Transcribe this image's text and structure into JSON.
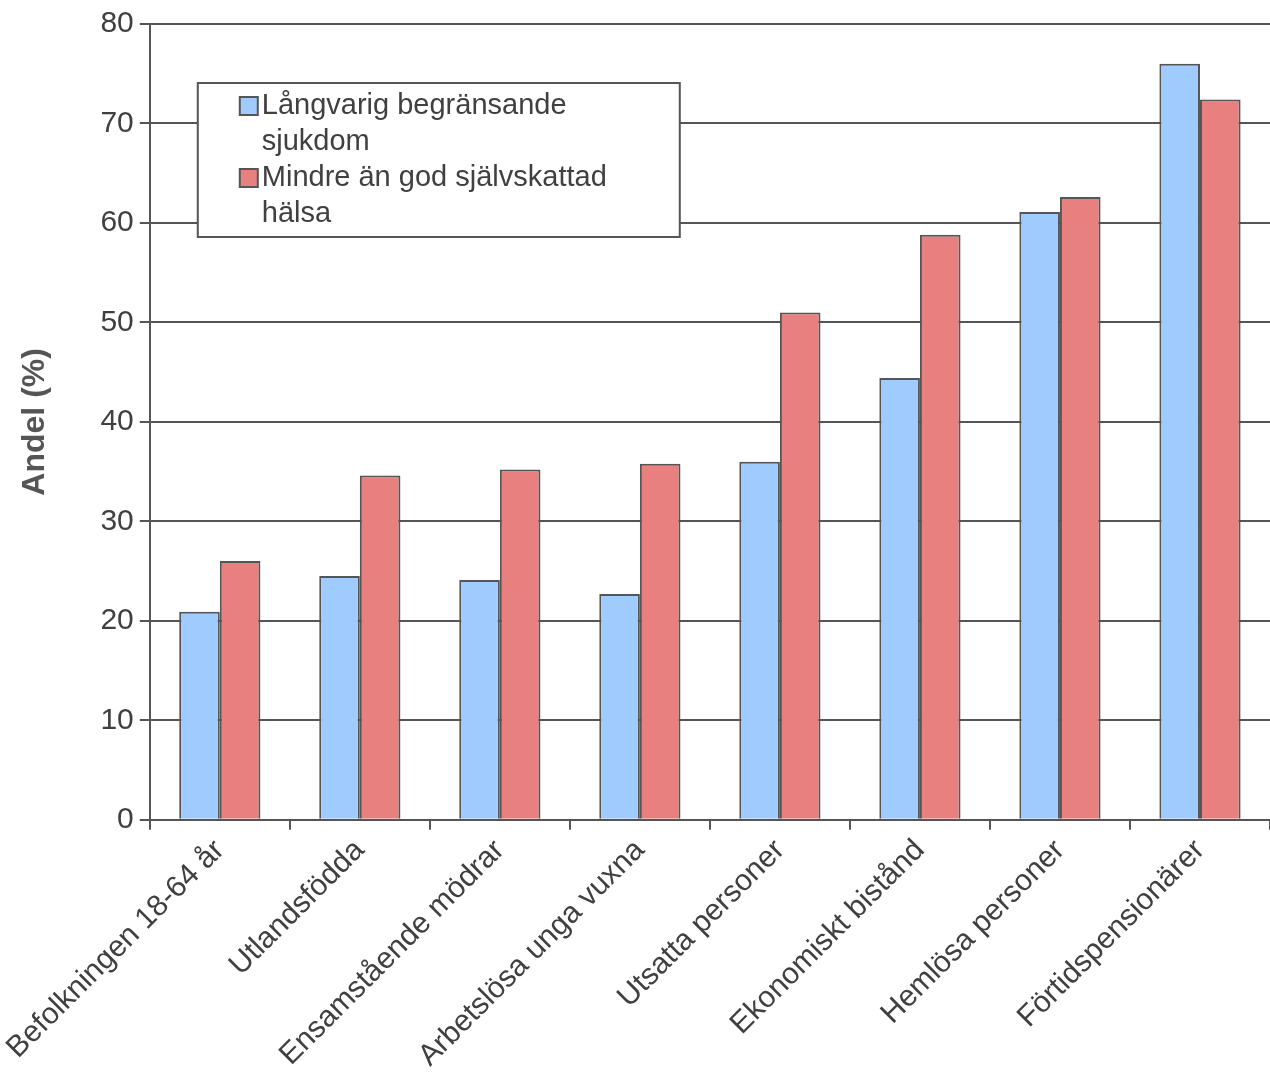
{
  "chart_data": {
    "type": "bar",
    "ylabel": "Andel (%)",
    "categories": [
      "Befolkningen 18-64 år",
      "Utlandsfödda",
      "Ensamstående mödrar",
      "Arbetslösa unga vuxna",
      "Utsatta personer",
      "Ekonomiskt bistånd",
      "Hemlösa personer",
      "Förtidspensionärer"
    ],
    "series": [
      {
        "name": "Långvarig begränsande sjukdom",
        "color": "#a0cbff",
        "values": [
          20.9,
          24.5,
          24.1,
          22.7,
          36.0,
          44.4,
          61.1,
          76.0
        ]
      },
      {
        "name": "Mindre än god självskattad hälsa",
        "color": "#e88080",
        "values": [
          26.0,
          34.6,
          35.2,
          35.8,
          51.0,
          58.8,
          62.6,
          72.4
        ]
      }
    ],
    "ylim": [
      0,
      80
    ],
    "yticks": [
      0,
      10,
      20,
      30,
      40,
      50,
      60,
      70,
      80
    ],
    "grid": "y",
    "legend": "top left"
  }
}
